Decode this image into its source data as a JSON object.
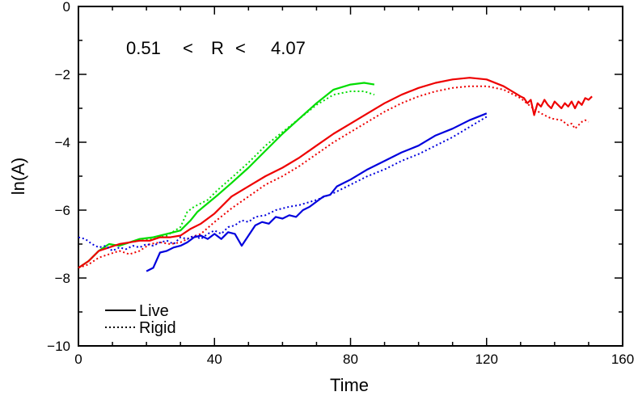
{
  "chart_data": {
    "type": "line",
    "title": "",
    "xlabel": "Time",
    "ylabel": "ln(A)",
    "xlim": [
      0,
      160
    ],
    "ylim": [
      -10,
      0
    ],
    "xticks": [
      0,
      40,
      80,
      120,
      160
    ],
    "yticks": [
      0,
      -2,
      -4,
      -6,
      -8,
      -10
    ],
    "annotation": {
      "left": "0.51",
      "op1": "<",
      "var": "R",
      "op2": "<",
      "right": "4.07"
    },
    "legend": {
      "placement": "bottom-left",
      "entries": [
        {
          "label": "Live",
          "style": "solid"
        },
        {
          "label": "Rigid",
          "style": "dotted"
        }
      ]
    },
    "colors": {
      "green": "#00dd00",
      "red": "#ee0000",
      "blue": "#0000dd",
      "axis": "#000000"
    },
    "series": [
      {
        "color": "green",
        "style": "solid",
        "x": [
          0,
          3,
          6,
          9,
          12,
          15,
          18,
          22,
          26,
          30,
          33,
          35,
          38,
          41,
          45,
          50,
          55,
          60,
          65,
          70,
          75,
          80,
          84,
          87
        ],
        "y": [
          -7.7,
          -7.5,
          -7.2,
          -7.0,
          -7.05,
          -6.95,
          -6.85,
          -6.8,
          -6.7,
          -6.6,
          -6.3,
          -6.05,
          -5.8,
          -5.55,
          -5.2,
          -4.75,
          -4.25,
          -3.75,
          -3.3,
          -2.85,
          -2.45,
          -2.3,
          -2.25,
          -2.3
        ]
      },
      {
        "color": "green",
        "style": "dotted",
        "x": [
          0,
          3,
          6,
          9,
          12,
          15,
          18,
          22,
          26,
          30,
          32,
          34,
          38,
          41,
          45,
          50,
          55,
          60,
          65,
          70,
          75,
          80,
          84,
          87
        ],
        "y": [
          -7.7,
          -7.5,
          -7.2,
          -7.0,
          -7.05,
          -6.95,
          -6.9,
          -6.85,
          -6.75,
          -6.5,
          -6.05,
          -5.9,
          -5.7,
          -5.4,
          -5.05,
          -4.6,
          -4.1,
          -3.7,
          -3.3,
          -2.9,
          -2.6,
          -2.5,
          -2.5,
          -2.6
        ]
      },
      {
        "color": "red",
        "style": "solid",
        "x": [
          0,
          3,
          6,
          9,
          12,
          15,
          18,
          21,
          24,
          27,
          30,
          33,
          36,
          40,
          45,
          50,
          55,
          60,
          65,
          70,
          75,
          80,
          85,
          90,
          95,
          100,
          105,
          110,
          115,
          120,
          125,
          130,
          131,
          132,
          133,
          134,
          135,
          136,
          137,
          138,
          139,
          140,
          141,
          142,
          143,
          144,
          145,
          146,
          147,
          148,
          149,
          150,
          151
        ],
        "y": [
          -7.7,
          -7.5,
          -7.2,
          -7.1,
          -7.0,
          -6.95,
          -6.9,
          -6.9,
          -6.8,
          -6.8,
          -6.75,
          -6.55,
          -6.4,
          -6.1,
          -5.6,
          -5.3,
          -5.0,
          -4.75,
          -4.45,
          -4.1,
          -3.75,
          -3.45,
          -3.15,
          -2.85,
          -2.6,
          -2.4,
          -2.25,
          -2.15,
          -2.1,
          -2.15,
          -2.35,
          -2.65,
          -2.7,
          -2.85,
          -2.75,
          -3.2,
          -2.85,
          -2.95,
          -2.75,
          -2.9,
          -3.0,
          -2.8,
          -2.9,
          -3.0,
          -2.85,
          -2.95,
          -2.8,
          -3.0,
          -2.8,
          -2.9,
          -2.7,
          -2.75,
          -2.65
        ]
      },
      {
        "color": "red",
        "style": "dotted",
        "x": [
          0,
          3,
          6,
          9,
          12,
          15,
          18,
          21,
          24,
          27,
          30,
          33,
          36,
          40,
          45,
          50,
          55,
          60,
          65,
          70,
          75,
          80,
          85,
          90,
          95,
          100,
          105,
          110,
          115,
          120,
          125,
          130,
          133,
          136,
          139,
          142,
          144,
          145,
          146,
          147,
          148,
          149,
          150
        ],
        "y": [
          -7.7,
          -7.6,
          -7.4,
          -7.3,
          -7.2,
          -7.3,
          -7.2,
          -7.0,
          -6.95,
          -7.0,
          -6.95,
          -6.8,
          -6.7,
          -6.35,
          -5.95,
          -5.6,
          -5.25,
          -5.0,
          -4.7,
          -4.35,
          -4.0,
          -3.7,
          -3.4,
          -3.1,
          -2.85,
          -2.65,
          -2.5,
          -2.4,
          -2.35,
          -2.35,
          -2.45,
          -2.7,
          -2.95,
          -3.15,
          -3.3,
          -3.35,
          -3.5,
          -3.45,
          -3.6,
          -3.5,
          -3.4,
          -3.35,
          -3.4
        ]
      },
      {
        "color": "blue",
        "style": "solid",
        "x": [
          20,
          22,
          24,
          26,
          28,
          30,
          32,
          34,
          36,
          38,
          40,
          42,
          44,
          46,
          48,
          50,
          52,
          54,
          56,
          58,
          60,
          62,
          64,
          66,
          68,
          70,
          72,
          74,
          76,
          78,
          80,
          85,
          90,
          95,
          100,
          105,
          110,
          115,
          120
        ],
        "y": [
          -7.8,
          -7.7,
          -7.25,
          -7.2,
          -7.1,
          -7.05,
          -6.95,
          -6.8,
          -6.75,
          -6.85,
          -6.7,
          -6.85,
          -6.65,
          -6.7,
          -7.05,
          -6.75,
          -6.45,
          -6.35,
          -6.4,
          -6.2,
          -6.25,
          -6.15,
          -6.2,
          -6.0,
          -5.9,
          -5.75,
          -5.6,
          -5.55,
          -5.3,
          -5.2,
          -5.1,
          -4.8,
          -4.55,
          -4.3,
          -4.1,
          -3.8,
          -3.6,
          -3.35,
          -3.15
        ]
      },
      {
        "color": "blue",
        "style": "dotted",
        "x": [
          0,
          2,
          4,
          6,
          8,
          10,
          12,
          14,
          16,
          18,
          20,
          22,
          24,
          26,
          28,
          30,
          32,
          34,
          36,
          38,
          40,
          42,
          44,
          46,
          48,
          50,
          52,
          55,
          58,
          60,
          62,
          65,
          70,
          75,
          80,
          85,
          90,
          95,
          100,
          105,
          110,
          115,
          120
        ],
        "y": [
          -6.8,
          -6.85,
          -7.0,
          -7.1,
          -7.05,
          -7.2,
          -7.1,
          -7.15,
          -7.05,
          -7.1,
          -7.0,
          -7.05,
          -6.95,
          -6.9,
          -7.0,
          -6.8,
          -6.85,
          -6.75,
          -6.85,
          -6.7,
          -6.6,
          -6.7,
          -6.5,
          -6.45,
          -6.3,
          -6.35,
          -6.2,
          -6.15,
          -6.0,
          -5.95,
          -5.9,
          -5.85,
          -5.7,
          -5.5,
          -5.25,
          -5.0,
          -4.8,
          -4.55,
          -4.35,
          -4.1,
          -3.85,
          -3.55,
          -3.25
        ]
      }
    ]
  }
}
